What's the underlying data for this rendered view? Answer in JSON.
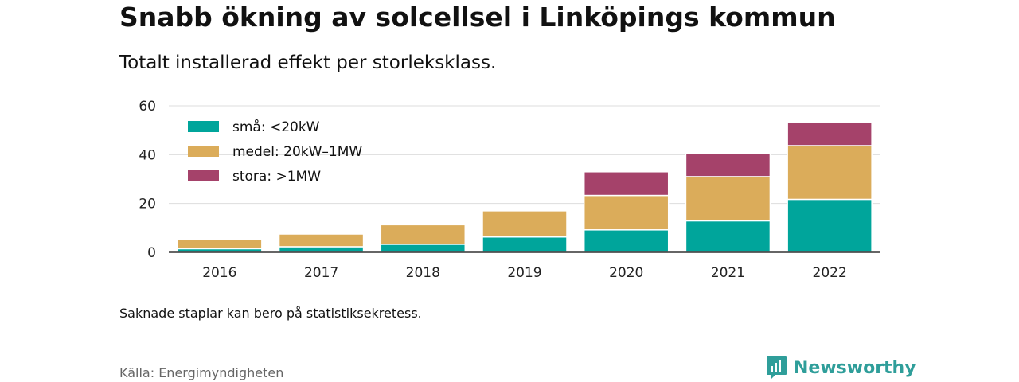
{
  "header": {
    "title": "Snabb ökning av solcellsel i Linköpings kommun",
    "subtitle": "Totalt installerad effekt per storleksklass."
  },
  "footer": {
    "note": "Saknade staplar kan bero på statistiksekretess.",
    "source": "Källa: Energimyndigheten",
    "brand": "Newsworthy"
  },
  "colors": {
    "small": "#00a59b",
    "medium": "#dbac5a",
    "large": "#a5426a",
    "brand": "#2f9e9a"
  },
  "chart_data": {
    "type": "bar",
    "stacked": true,
    "title": "Snabb ökning av solcellsel i Linköpings kommun",
    "subtitle": "Totalt installerad effekt per storleksklass.",
    "categories": [
      "2016",
      "2017",
      "2018",
      "2019",
      "2020",
      "2021",
      "2022"
    ],
    "series": [
      {
        "name": "små: <20kW",
        "color": "#00a59b",
        "values": [
          1.5,
          2.3,
          3.3,
          6.3,
          9.2,
          12.9,
          21.7
        ]
      },
      {
        "name": "medel: 20kW–1MW",
        "color": "#dbac5a",
        "values": [
          3.7,
          5.2,
          8.0,
          10.7,
          14.1,
          18.1,
          22.0
        ]
      },
      {
        "name": "stora: >1MW",
        "color": "#a5426a",
        "values": [
          null,
          null,
          null,
          null,
          9.7,
          9.5,
          9.7
        ]
      }
    ],
    "ylim": [
      0,
      60
    ],
    "yticks": [
      0,
      20,
      40,
      60
    ],
    "yticklabels": [
      "0",
      "20",
      "40",
      "60"
    ],
    "xlabel": "",
    "ylabel": "",
    "grid": true,
    "legend_position": "top-left"
  }
}
